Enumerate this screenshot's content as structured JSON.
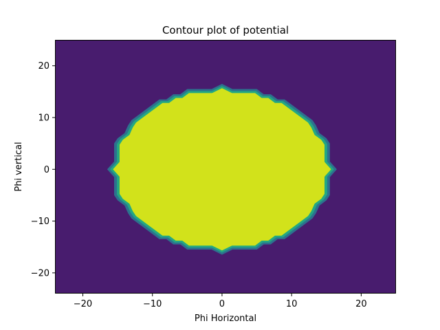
{
  "chart_data": {
    "type": "contour",
    "title": "Contour plot of potential",
    "xlabel": "Phi Horizontal",
    "ylabel": "Phi vertical",
    "xlim": [
      -24,
      25
    ],
    "ylim": [
      -24,
      25
    ],
    "xticks": [
      -20,
      -10,
      0,
      10,
      20
    ],
    "yticks": [
      -20,
      -10,
      0,
      10,
      20
    ],
    "xtick_labels": [
      "−20",
      "−10",
      "0",
      "10",
      "20"
    ],
    "ytick_labels": [
      "−20",
      "−10",
      "0",
      "10",
      "20"
    ],
    "grid": false,
    "colors": {
      "background_level": "#481c6e",
      "edge_level_1": "#2c728e",
      "edge_level_2": "#23a883",
      "inner_level": "#d2e21b"
    },
    "filled_region_boundary": [
      [
        0,
        16.5
      ],
      [
        1.5,
        15.5
      ],
      [
        5,
        15.5
      ],
      [
        6,
        14.5
      ],
      [
        7,
        14.5
      ],
      [
        8,
        13.5
      ],
      [
        9,
        13.5
      ],
      [
        13,
        9.5
      ],
      [
        13.5,
        8.5
      ],
      [
        14,
        7
      ],
      [
        15,
        6
      ],
      [
        15.5,
        5
      ],
      [
        15.5,
        1.5
      ],
      [
        16.5,
        0
      ],
      [
        15.5,
        -1.5
      ],
      [
        15.5,
        -5
      ],
      [
        15,
        -6
      ],
      [
        14,
        -7
      ],
      [
        13.5,
        -8.5
      ],
      [
        13,
        -9.5
      ],
      [
        9,
        -13.5
      ],
      [
        8,
        -13.5
      ],
      [
        7,
        -14.5
      ],
      [
        6,
        -14.5
      ],
      [
        5,
        -15.5
      ],
      [
        1.5,
        -15.5
      ],
      [
        0,
        -16.5
      ],
      [
        -1.5,
        -15.5
      ],
      [
        -5,
        -15.5
      ],
      [
        -6,
        -14.5
      ],
      [
        -7,
        -14.5
      ],
      [
        -8,
        -13.5
      ],
      [
        -9,
        -13.5
      ],
      [
        -13,
        -9.5
      ],
      [
        -13.5,
        -8.5
      ],
      [
        -14,
        -7
      ],
      [
        -15,
        -6
      ],
      [
        -15.5,
        -5
      ],
      [
        -15.5,
        -1.5
      ],
      [
        -16.5,
        0
      ],
      [
        -15.5,
        1.5
      ],
      [
        -15.5,
        5
      ],
      [
        -15,
        6
      ],
      [
        -14,
        7
      ],
      [
        -13.5,
        8.5
      ],
      [
        -13,
        9.5
      ],
      [
        -9,
        13.5
      ],
      [
        -8,
        13.5
      ],
      [
        -7,
        14.5
      ],
      [
        -6,
        14.5
      ],
      [
        -5,
        15.5
      ],
      [
        -1.5,
        15.5
      ]
    ]
  }
}
